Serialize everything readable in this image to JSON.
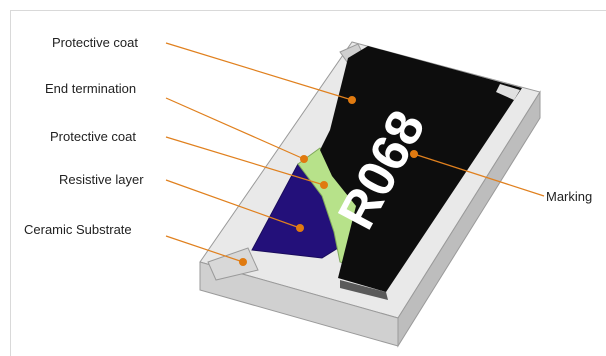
{
  "diagram": {
    "labels": {
      "protective_coat_top": "Protective coat",
      "end_termination": "End termination",
      "protective_coat_mid": "Protective coat",
      "resistive_layer": "Resistive layer",
      "ceramic_substrate": "Ceramic Substrate",
      "marking": "Marking"
    },
    "marking_code": "R068",
    "colors": {
      "leader_line": "#e0801e",
      "leader_dot": "#e07a10",
      "protective_coat": "#0d0d0d",
      "resistive_layer": "#23107a",
      "inner_coat": "#b7e28a",
      "substrate_top": "#e8e8e8",
      "substrate_side": "#c4c4c4",
      "marking_text": "#ffffff"
    }
  }
}
